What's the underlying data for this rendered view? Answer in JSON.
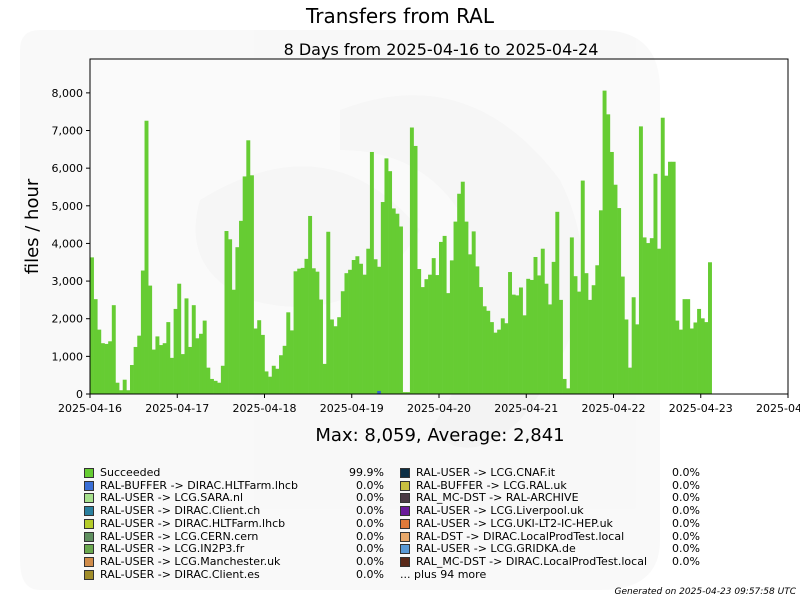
{
  "chart_data": {
    "type": "bar",
    "title": "Transfers from RAL",
    "subtitle": "8 Days from 2025-04-16 to 2025-04-24",
    "ylabel": "files / hour",
    "ylim": [
      0,
      8900
    ],
    "yticks": [
      0,
      1000,
      2000,
      3000,
      4000,
      5000,
      6000,
      7000,
      8000
    ],
    "ytick_labels": [
      "0",
      "1,000",
      "2,000",
      "3,000",
      "4,000",
      "5,000",
      "6,000",
      "7,000",
      "8,000"
    ],
    "xticks": [
      "2025-04-16",
      "2025-04-17",
      "2025-04-18",
      "2025-04-19",
      "2025-04-20",
      "2025-04-21",
      "2025-04-22",
      "2025-04-23",
      "2025-04-24"
    ],
    "hours_total": 192,
    "series": [
      {
        "name": "Succeeded",
        "color": "#66cc33",
        "values": [
          3630,
          2520,
          1710,
          1350,
          1330,
          1400,
          2360,
          300,
          100,
          380,
          100,
          770,
          1250,
          1550,
          3280,
          7260,
          2880,
          1180,
          1530,
          1300,
          1350,
          1910,
          960,
          2260,
          2930,
          1060,
          2540,
          1250,
          2360,
          1480,
          1600,
          1950,
          700,
          400,
          350,
          300,
          750,
          4330,
          4110,
          2770,
          3900,
          4600,
          5780,
          6740,
          5810,
          1740,
          1960,
          1570,
          600,
          460,
          750,
          670,
          1030,
          1280,
          2170,
          1690,
          3260,
          3330,
          3350,
          3590,
          4730,
          3340,
          3250,
          2510,
          800,
          4310,
          1980,
          1800,
          2040,
          2730,
          3210,
          3300,
          3560,
          3660,
          3460,
          3170,
          3860,
          6430,
          3580,
          3380,
          5100,
          6260,
          5920,
          4930,
          4790,
          4450,
          50,
          50,
          7080,
          6590,
          3320,
          2840,
          3050,
          3170,
          3610,
          3160,
          4040,
          4200,
          2680,
          3550,
          4580,
          5320,
          5640,
          4580,
          3710,
          4320,
          3390,
          2840,
          2330,
          2210,
          1910,
          1630,
          1710,
          2010,
          1880,
          3240,
          2640,
          2620,
          2830,
          2090,
          3060,
          3030,
          3640,
          3150,
          3860,
          2930,
          2380,
          3510,
          4840,
          2500,
          400,
          150,
          4160,
          3130,
          2720,
          5670,
          3210,
          2500,
          2890,
          3420,
          4880,
          8060,
          7430,
          6430,
          5560,
          4940,
          3120,
          1980,
          700,
          2570,
          1850,
          7110,
          4160,
          4010,
          4140,
          5850,
          3860,
          7340,
          5800,
          6170,
          6170,
          1950,
          1710,
          2520,
          2520,
          1740,
          1900,
          2260,
          2010,
          1910,
          3500
        ]
      },
      {
        "name": "RAL-BUFFER -> DIRAC.HLTFarm.lhcb",
        "color": "#3366cc",
        "sparse": [
          [
            79,
            80
          ]
        ]
      }
    ],
    "max_label": "Max: 8,059, Average: 2,841",
    "legend_placement": "bottom",
    "grid": false
  },
  "legend": {
    "left": [
      {
        "name": "Succeeded",
        "pct": "99.9%",
        "color": "#66cc33"
      },
      {
        "name": "RAL-BUFFER -> DIRAC.HLTFarm.lhcb",
        "pct": "0.0%",
        "color": "#3a6fd6"
      },
      {
        "name": "RAL-USER -> LCG.SARA.nl",
        "pct": "0.0%",
        "color": "#a6e08c"
      },
      {
        "name": "RAL-USER -> DIRAC.Client.ch",
        "pct": "0.0%",
        "color": "#2a7f9e"
      },
      {
        "name": "RAL-USER -> DIRAC.HLTFarm.lhcb",
        "pct": "0.0%",
        "color": "#b5cc2a"
      },
      {
        "name": "RAL-USER -> LCG.CERN.cern",
        "pct": "0.0%",
        "color": "#5f8f5f"
      },
      {
        "name": "RAL-USER -> LCG.IN2P3.fr",
        "pct": "0.0%",
        "color": "#6aa84f"
      },
      {
        "name": "RAL-USER -> LCG.Manchester.uk",
        "pct": "0.0%",
        "color": "#d08c4a"
      },
      {
        "name": "RAL-USER -> DIRAC.Client.es",
        "pct": "0.0%",
        "color": "#a08c2a"
      }
    ],
    "right": [
      {
        "name": "RAL-USER -> LCG.CNAF.it",
        "pct": "0.0%",
        "color": "#0d2f44"
      },
      {
        "name": "RAL-BUFFER -> LCG.RAL.uk",
        "pct": "0.0%",
        "color": "#c8c040"
      },
      {
        "name": "RAL_MC-DST -> RAL-ARCHIVE",
        "pct": "0.0%",
        "color": "#4a3a44"
      },
      {
        "name": "RAL-USER -> LCG.Liverpool.uk",
        "pct": "0.0%",
        "color": "#6a1a9a"
      },
      {
        "name": "RAL-USER -> LCG.UKI-LT2-IC-HEP.uk",
        "pct": "0.0%",
        "color": "#e07a3a"
      },
      {
        "name": "RAL-DST -> DIRAC.LocalProdTest.local",
        "pct": "0.0%",
        "color": "#e8a86a"
      },
      {
        "name": "RAL-USER -> LCG.GRIDKA.de",
        "pct": "0.0%",
        "color": "#5a9ad6"
      },
      {
        "name": "RAL_MC-DST -> DIRAC.LocalProdTest.local",
        "pct": "0.0%",
        "color": "#5a2a1a"
      }
    ],
    "more": "... plus 94 more"
  },
  "footer": {
    "generated": "Generated on 2025-04-23 09:57:58 UTC"
  }
}
